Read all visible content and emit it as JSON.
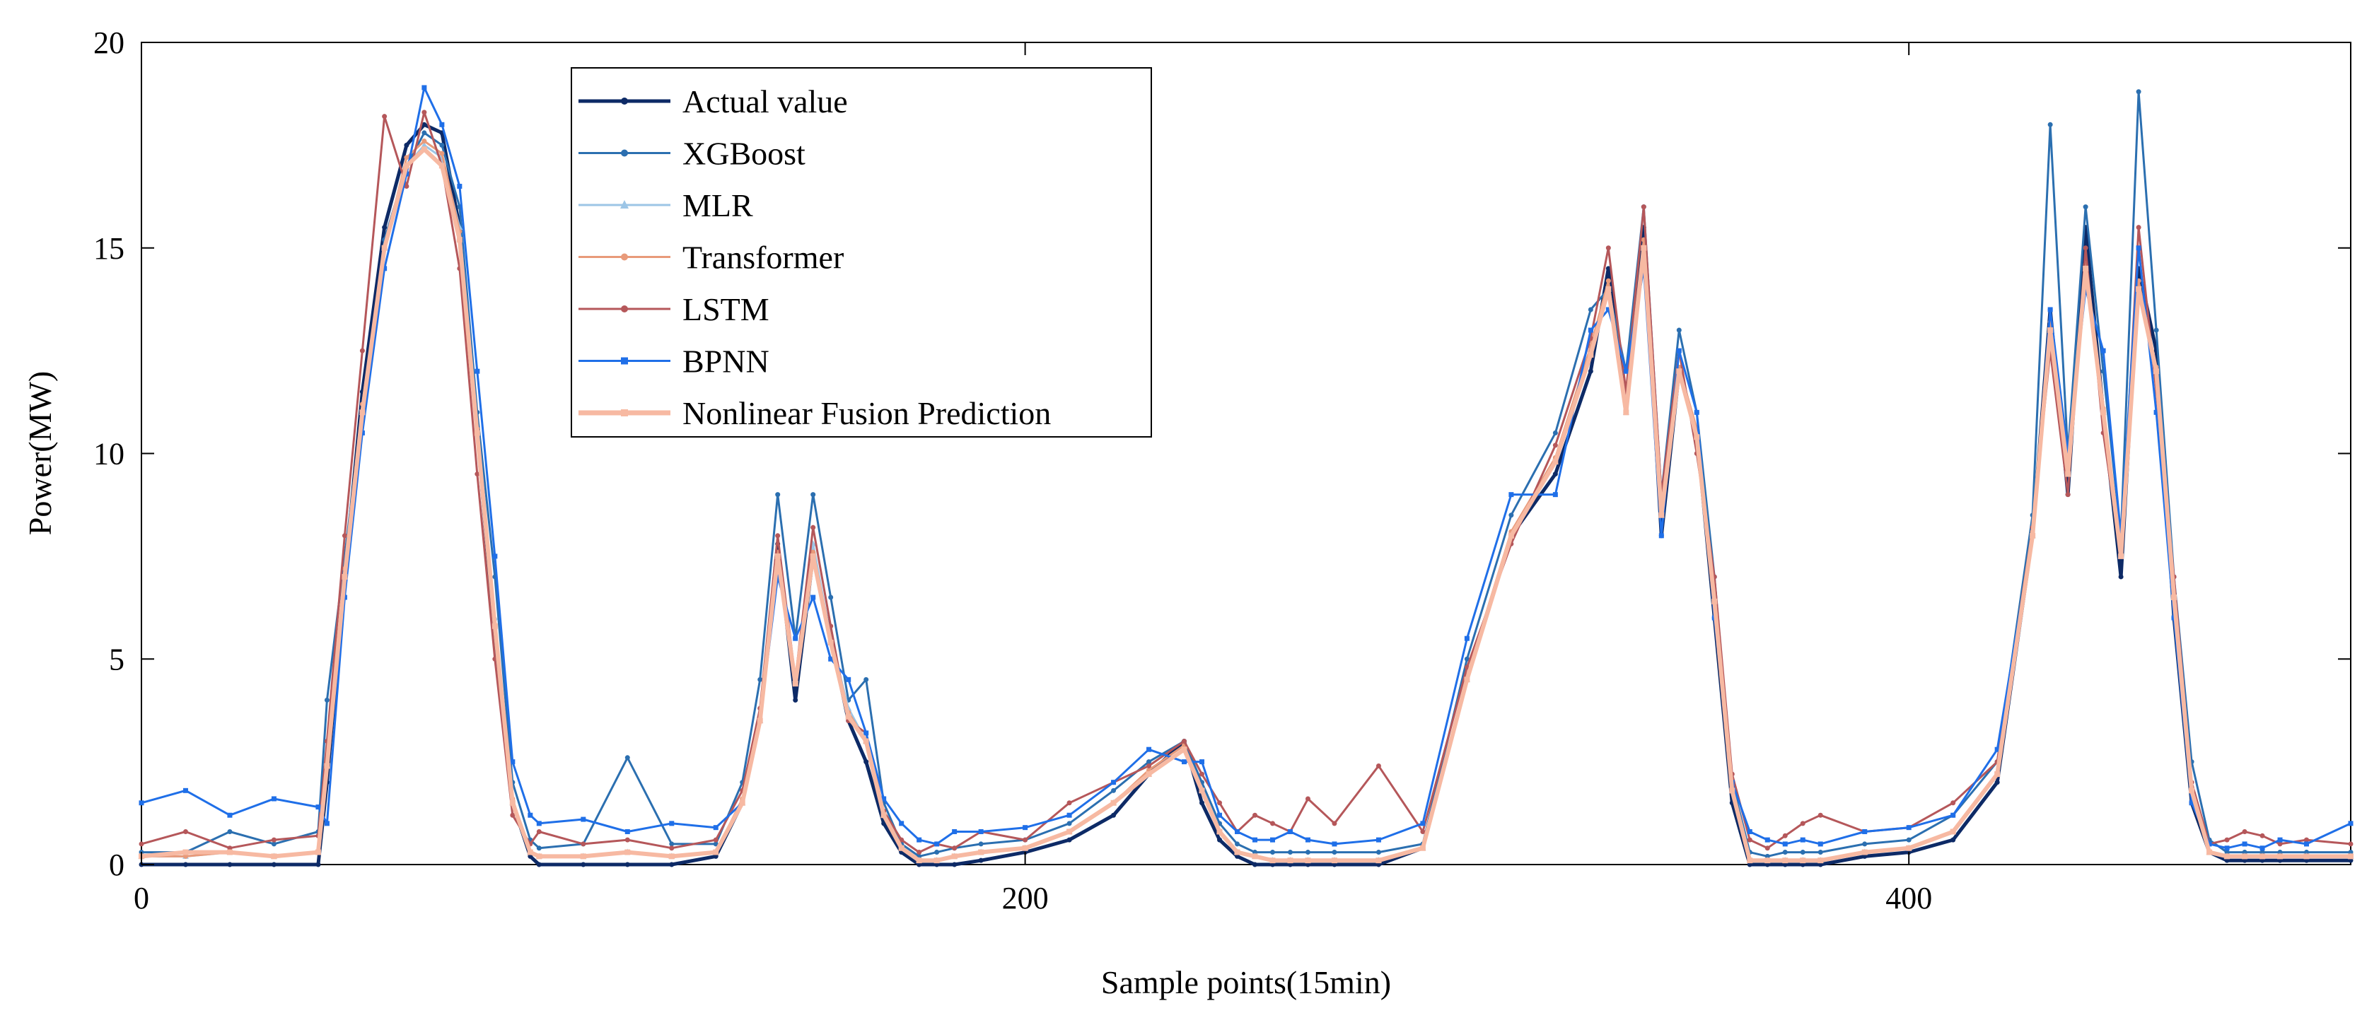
{
  "chart_data": {
    "type": "line",
    "title": "",
    "xlabel": "Sample points(15min)",
    "ylabel": "Power(MW)",
    "xlim": [
      0,
      500
    ],
    "ylim": [
      0,
      20
    ],
    "xticks": [
      0,
      200,
      400
    ],
    "yticks": [
      0,
      5,
      10,
      15,
      20
    ],
    "grid": false,
    "legend_position": "top-left",
    "x": [
      0,
      10,
      20,
      30,
      40,
      42,
      46,
      50,
      55,
      60,
      64,
      68,
      72,
      76,
      80,
      84,
      88,
      90,
      100,
      110,
      120,
      130,
      136,
      140,
      144,
      148,
      152,
      156,
      160,
      164,
      168,
      172,
      176,
      180,
      184,
      190,
      200,
      210,
      220,
      228,
      236,
      240,
      244,
      248,
      252,
      256,
      260,
      264,
      270,
      280,
      290,
      300,
      310,
      320,
      328,
      332,
      336,
      340,
      344,
      348,
      352,
      356,
      360,
      364,
      368,
      372,
      376,
      380,
      390,
      400,
      410,
      420,
      428,
      432,
      436,
      440,
      444,
      448,
      452,
      456,
      460,
      464,
      468,
      472,
      476,
      480,
      484,
      490,
      500
    ],
    "series": [
      {
        "name": "Actual value",
        "color": "#0d2a66",
        "marker": "dot",
        "values": [
          0,
          0,
          0,
          0,
          0,
          2.0,
          7.0,
          11.5,
          15.5,
          17.5,
          18.0,
          17.8,
          15.5,
          10.5,
          5.5,
          1.5,
          0.2,
          0,
          0,
          0,
          0,
          0.2,
          1.5,
          3.5,
          7.8,
          4.0,
          7.5,
          5.5,
          3.5,
          2.5,
          1.0,
          0.3,
          0,
          0,
          0,
          0.1,
          0.3,
          0.6,
          1.2,
          2.2,
          3.0,
          1.5,
          0.6,
          0.2,
          0,
          0,
          0,
          0,
          0,
          0,
          0.4,
          4.5,
          8.0,
          9.5,
          12.0,
          14.5,
          11.0,
          15.5,
          8.0,
          12.0,
          10.5,
          6.0,
          1.5,
          0,
          0,
          0,
          0,
          0,
          0.2,
          0.3,
          0.6,
          2.0,
          8.0,
          13.5,
          9.0,
          15.5,
          11.0,
          7.0,
          14.5,
          12.5,
          6.0,
          1.5,
          0.3,
          0.1,
          0.1,
          0.1,
          0.1,
          0.1,
          0.1
        ]
      },
      {
        "name": "XGBoost",
        "color": "#2b6fb0",
        "marker": "dot",
        "values": [
          0.3,
          0.3,
          0.8,
          0.5,
          0.8,
          4.0,
          7.5,
          11.0,
          15.2,
          17.0,
          17.8,
          17.5,
          16.0,
          11.0,
          7.0,
          2.0,
          0.6,
          0.4,
          0.5,
          2.6,
          0.5,
          0.5,
          2.0,
          4.5,
          9.0,
          5.5,
          9.0,
          6.5,
          4.0,
          4.5,
          1.5,
          0.5,
          0.2,
          0.3,
          0.4,
          0.5,
          0.6,
          1.0,
          1.8,
          2.5,
          3.0,
          2.0,
          1.0,
          0.5,
          0.3,
          0.3,
          0.3,
          0.3,
          0.3,
          0.3,
          0.5,
          5.0,
          8.5,
          10.5,
          13.5,
          14.0,
          12.0,
          16.0,
          9.0,
          13.0,
          11.0,
          7.0,
          2.0,
          0.3,
          0.2,
          0.3,
          0.3,
          0.3,
          0.5,
          0.6,
          1.2,
          2.5,
          8.5,
          18.0,
          10.0,
          16.0,
          12.0,
          8.0,
          18.8,
          13.0,
          7.0,
          2.5,
          0.6,
          0.3,
          0.3,
          0.3,
          0.3,
          0.3,
          0.3
        ]
      },
      {
        "name": "MLR",
        "color": "#9cc5e6",
        "marker": "triangle",
        "values": [
          0.2,
          0.2,
          0.3,
          0.2,
          0.3,
          2.5,
          7.0,
          11.0,
          15.0,
          17.0,
          17.5,
          17.2,
          15.5,
          10.5,
          6.0,
          1.5,
          0.3,
          0.2,
          0.2,
          0.3,
          0.2,
          0.3,
          1.5,
          3.5,
          7.5,
          4.5,
          7.8,
          5.5,
          3.8,
          3.0,
          1.2,
          0.4,
          0.1,
          0.1,
          0.2,
          0.3,
          0.4,
          0.8,
          1.5,
          2.2,
          2.8,
          1.8,
          0.8,
          0.3,
          0.2,
          0.1,
          0.1,
          0.1,
          0.1,
          0.1,
          0.4,
          4.5,
          8.0,
          9.8,
          12.5,
          14.0,
          11.0,
          15.0,
          8.5,
          12.0,
          10.5,
          6.5,
          1.8,
          0.1,
          0.1,
          0.1,
          0.1,
          0.1,
          0.3,
          0.4,
          0.8,
          2.2,
          8.0,
          13.0,
          9.5,
          14.5,
          11.0,
          7.5,
          14.0,
          12.0,
          6.5,
          1.8,
          0.3,
          0.2,
          0.2,
          0.2,
          0.2,
          0.2,
          0.2
        ]
      },
      {
        "name": "Transformer",
        "color": "#e89a7a",
        "marker": "dot",
        "values": [
          0.2,
          0.2,
          0.3,
          0.2,
          0.3,
          2.6,
          7.2,
          11.2,
          15.0,
          17.2,
          17.6,
          17.3,
          15.4,
          10.6,
          5.8,
          1.6,
          0.3,
          0.2,
          0.2,
          0.3,
          0.2,
          0.3,
          1.6,
          3.6,
          7.6,
          4.4,
          7.6,
          5.4,
          3.7,
          3.0,
          1.2,
          0.4,
          0.1,
          0.1,
          0.2,
          0.3,
          0.4,
          0.8,
          1.5,
          2.3,
          2.9,
          1.8,
          0.8,
          0.3,
          0.2,
          0.1,
          0.1,
          0.1,
          0.1,
          0.1,
          0.4,
          4.6,
          8.1,
          9.9,
          12.6,
          14.2,
          11.1,
          15.2,
          8.6,
          12.1,
          10.6,
          6.6,
          1.8,
          0.1,
          0.1,
          0.1,
          0.1,
          0.1,
          0.3,
          0.4,
          0.8,
          2.2,
          8.1,
          13.2,
          9.6,
          14.6,
          11.1,
          7.6,
          14.2,
          12.1,
          6.6,
          1.8,
          0.3,
          0.2,
          0.2,
          0.2,
          0.2,
          0.2,
          0.2
        ]
      },
      {
        "name": "LSTM",
        "color": "#b5575a",
        "marker": "dot",
        "values": [
          0.5,
          0.8,
          0.4,
          0.6,
          0.7,
          3.0,
          8.0,
          12.5,
          18.2,
          16.5,
          18.3,
          17.0,
          14.5,
          9.5,
          5.0,
          1.2,
          0.5,
          0.8,
          0.5,
          0.6,
          0.4,
          0.6,
          1.8,
          3.8,
          8.0,
          4.5,
          8.2,
          5.8,
          3.5,
          3.2,
          1.3,
          0.6,
          0.3,
          0.5,
          0.4,
          0.8,
          0.6,
          1.5,
          2.0,
          2.4,
          3.0,
          2.2,
          1.5,
          0.8,
          1.2,
          1.0,
          0.8,
          1.6,
          1.0,
          2.4,
          0.8,
          4.8,
          7.8,
          10.2,
          12.8,
          15.0,
          11.5,
          16.0,
          9.0,
          12.5,
          10.0,
          7.0,
          2.2,
          0.6,
          0.4,
          0.7,
          1.0,
          1.2,
          0.8,
          0.9,
          1.5,
          2.5,
          8.2,
          12.5,
          9.0,
          15.0,
          10.5,
          7.5,
          15.5,
          11.5,
          7.0,
          2.0,
          0.5,
          0.6,
          0.8,
          0.7,
          0.5,
          0.6,
          0.5
        ]
      },
      {
        "name": "BPNN",
        "color": "#1f6fe8",
        "marker": "square",
        "values": [
          1.5,
          1.8,
          1.2,
          1.6,
          1.4,
          1.0,
          6.5,
          10.5,
          14.5,
          16.8,
          18.9,
          18.0,
          16.5,
          12.0,
          7.5,
          2.5,
          1.2,
          1.0,
          1.1,
          0.8,
          1.0,
          0.9,
          1.5,
          3.5,
          7.0,
          5.5,
          6.5,
          5.0,
          4.5,
          3.2,
          1.6,
          1.0,
          0.6,
          0.5,
          0.8,
          0.8,
          0.9,
          1.2,
          2.0,
          2.8,
          2.5,
          2.5,
          1.2,
          0.8,
          0.6,
          0.6,
          0.8,
          0.6,
          0.5,
          0.6,
          1.0,
          5.5,
          9.0,
          9.0,
          13.0,
          13.5,
          12.0,
          14.5,
          8.0,
          12.5,
          11.0,
          6.0,
          2.0,
          0.8,
          0.6,
          0.5,
          0.6,
          0.5,
          0.8,
          0.9,
          1.2,
          2.8,
          8.0,
          13.5,
          10.0,
          14.0,
          12.5,
          8.0,
          15.0,
          11.0,
          6.0,
          1.5,
          0.5,
          0.4,
          0.5,
          0.4,
          0.6,
          0.5,
          1.0
        ]
      },
      {
        "name": "Nonlinear Fusion Prediction",
        "color": "#f7b9a2",
        "marker": "square",
        "values": [
          0.2,
          0.3,
          0.3,
          0.2,
          0.3,
          2.4,
          7.0,
          11.0,
          15.0,
          17.0,
          17.4,
          17.0,
          15.2,
          10.5,
          5.8,
          1.5,
          0.3,
          0.2,
          0.2,
          0.3,
          0.2,
          0.3,
          1.5,
          3.5,
          7.5,
          4.4,
          7.5,
          5.4,
          3.6,
          3.0,
          1.2,
          0.4,
          0.1,
          0.1,
          0.2,
          0.3,
          0.4,
          0.8,
          1.5,
          2.2,
          2.8,
          1.8,
          0.8,
          0.3,
          0.2,
          0.1,
          0.1,
          0.1,
          0.1,
          0.1,
          0.4,
          4.5,
          8.0,
          9.8,
          12.4,
          14.0,
          11.0,
          15.0,
          8.5,
          12.0,
          10.4,
          6.4,
          1.8,
          0.1,
          0.1,
          0.1,
          0.1,
          0.1,
          0.3,
          0.4,
          0.8,
          2.2,
          8.0,
          13.0,
          9.5,
          14.5,
          11.0,
          7.5,
          14.0,
          12.0,
          6.5,
          1.8,
          0.3,
          0.2,
          0.2,
          0.2,
          0.2,
          0.2,
          0.2
        ]
      }
    ]
  }
}
